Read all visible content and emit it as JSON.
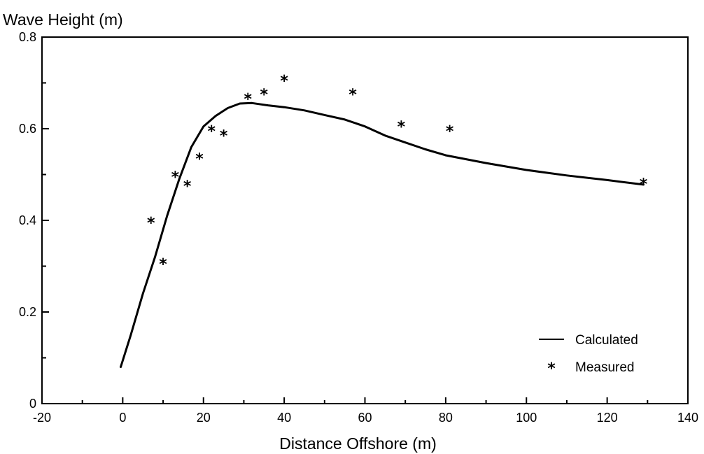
{
  "chart_data": {
    "type": "line",
    "title": "",
    "ylabel": "Wave Height (m)",
    "xlabel": "Distance Offshore (m)",
    "xlim": [
      -20,
      140
    ],
    "ylim": [
      0,
      0.8
    ],
    "x_ticks": [
      -20,
      0,
      20,
      40,
      60,
      80,
      100,
      120,
      140
    ],
    "x_tick_labels": [
      "-20",
      "0",
      "20",
      "40",
      "60",
      "80",
      "100",
      "120",
      "140"
    ],
    "y_ticks": [
      0,
      0.2,
      0.4,
      0.6,
      0.8
    ],
    "y_tick_labels": [
      "0",
      "0.2",
      "0.4",
      "0.6",
      "0.8"
    ],
    "grid": false,
    "legend_position": "bottom-right",
    "series": [
      {
        "name": "Calculated",
        "style": "line",
        "x": [
          -0.5,
          2,
          5,
          8,
          11,
          14,
          17,
          20,
          23,
          26,
          29,
          32,
          36,
          40,
          45,
          50,
          55,
          60,
          65,
          70,
          75,
          80,
          90,
          100,
          110,
          120,
          129
        ],
        "y": [
          0.08,
          0.15,
          0.24,
          0.32,
          0.41,
          0.49,
          0.56,
          0.605,
          0.628,
          0.645,
          0.655,
          0.656,
          0.651,
          0.647,
          0.64,
          0.63,
          0.62,
          0.605,
          0.585,
          0.57,
          0.555,
          0.542,
          0.525,
          0.51,
          0.498,
          0.488,
          0.478
        ]
      },
      {
        "name": "Measured",
        "style": "marker",
        "marker_glyph": "*",
        "x": [
          7,
          10,
          13,
          16,
          19,
          22,
          25,
          31,
          35,
          40,
          57,
          69,
          81,
          129
        ],
        "y": [
          0.4,
          0.31,
          0.5,
          0.48,
          0.54,
          0.6,
          0.59,
          0.67,
          0.68,
          0.71,
          0.68,
          0.61,
          0.6,
          0.485
        ]
      }
    ]
  }
}
